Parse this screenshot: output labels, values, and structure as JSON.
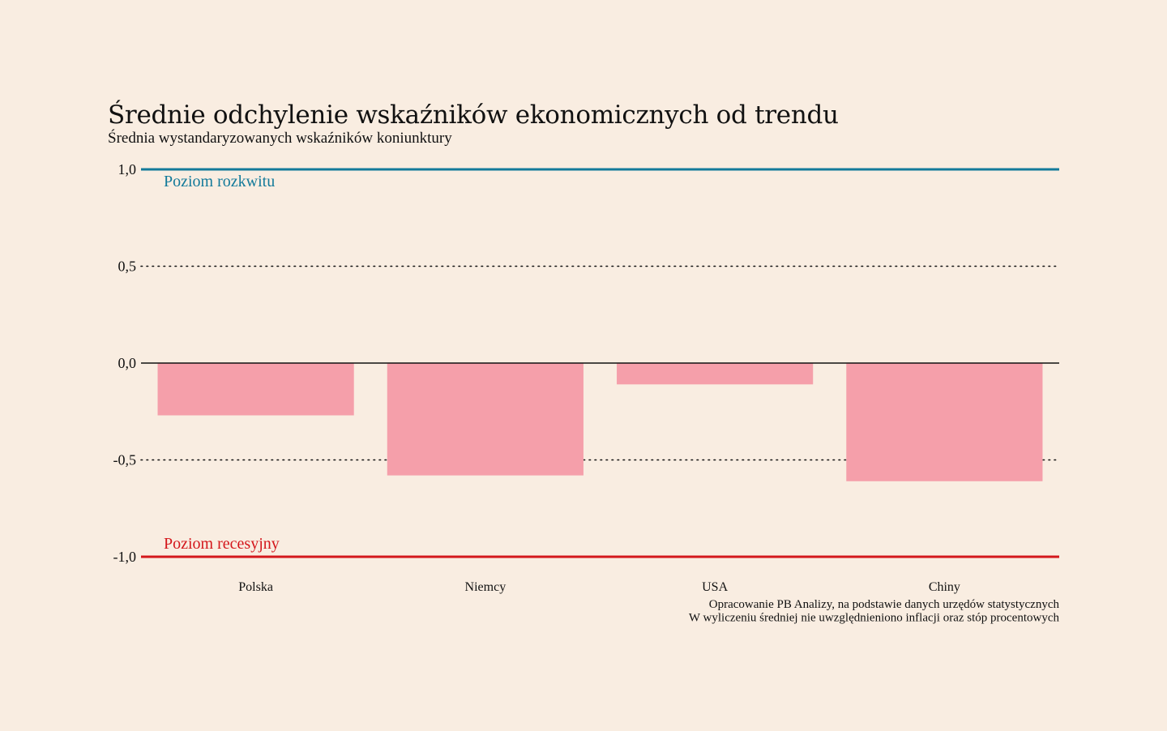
{
  "header": {
    "title": "Średnie odchylenie wskaźników ekonomicznych od trendu",
    "subtitle": "Średnia wystandaryzowanych wskaźników koniunktury"
  },
  "colors": {
    "background": "#f9ede1",
    "bar": "#f59faa",
    "boom_line": "#137a9a",
    "recession_line": "#d4171c",
    "text": "#111111"
  },
  "chart_data": {
    "type": "bar",
    "title": "Średnie odchylenie wskaźników ekonomicznych od trendu",
    "subtitle": "Średnia wystandaryzowanych wskaźników koniunktury",
    "categories": [
      "Polska",
      "Niemcy",
      "USA",
      "Chiny"
    ],
    "values": [
      -0.27,
      -0.58,
      -0.11,
      -0.61
    ],
    "ylim": [
      -1.0,
      1.0
    ],
    "yticks": [
      1.0,
      0.5,
      0.0,
      -0.5,
      -1.0
    ],
    "ytick_labels": [
      "1,0",
      "0,5",
      "0,0",
      "-0,5",
      "-1,0"
    ],
    "grid": "dotted at 0,5 and -0,5",
    "reference_lines": [
      {
        "value": 1.0,
        "label": "Poziom rozkwitu",
        "color": "#137a9a"
      },
      {
        "value": -1.0,
        "label": "Poziom recesyjny",
        "color": "#d4171c"
      }
    ],
    "annotations": [
      "Opracowanie PB Analizy, na podstawie danych urzędów statystycznych",
      "W wyliczeniu średniej nie uwzględnieniono inflacji oraz stóp procentowych"
    ]
  }
}
